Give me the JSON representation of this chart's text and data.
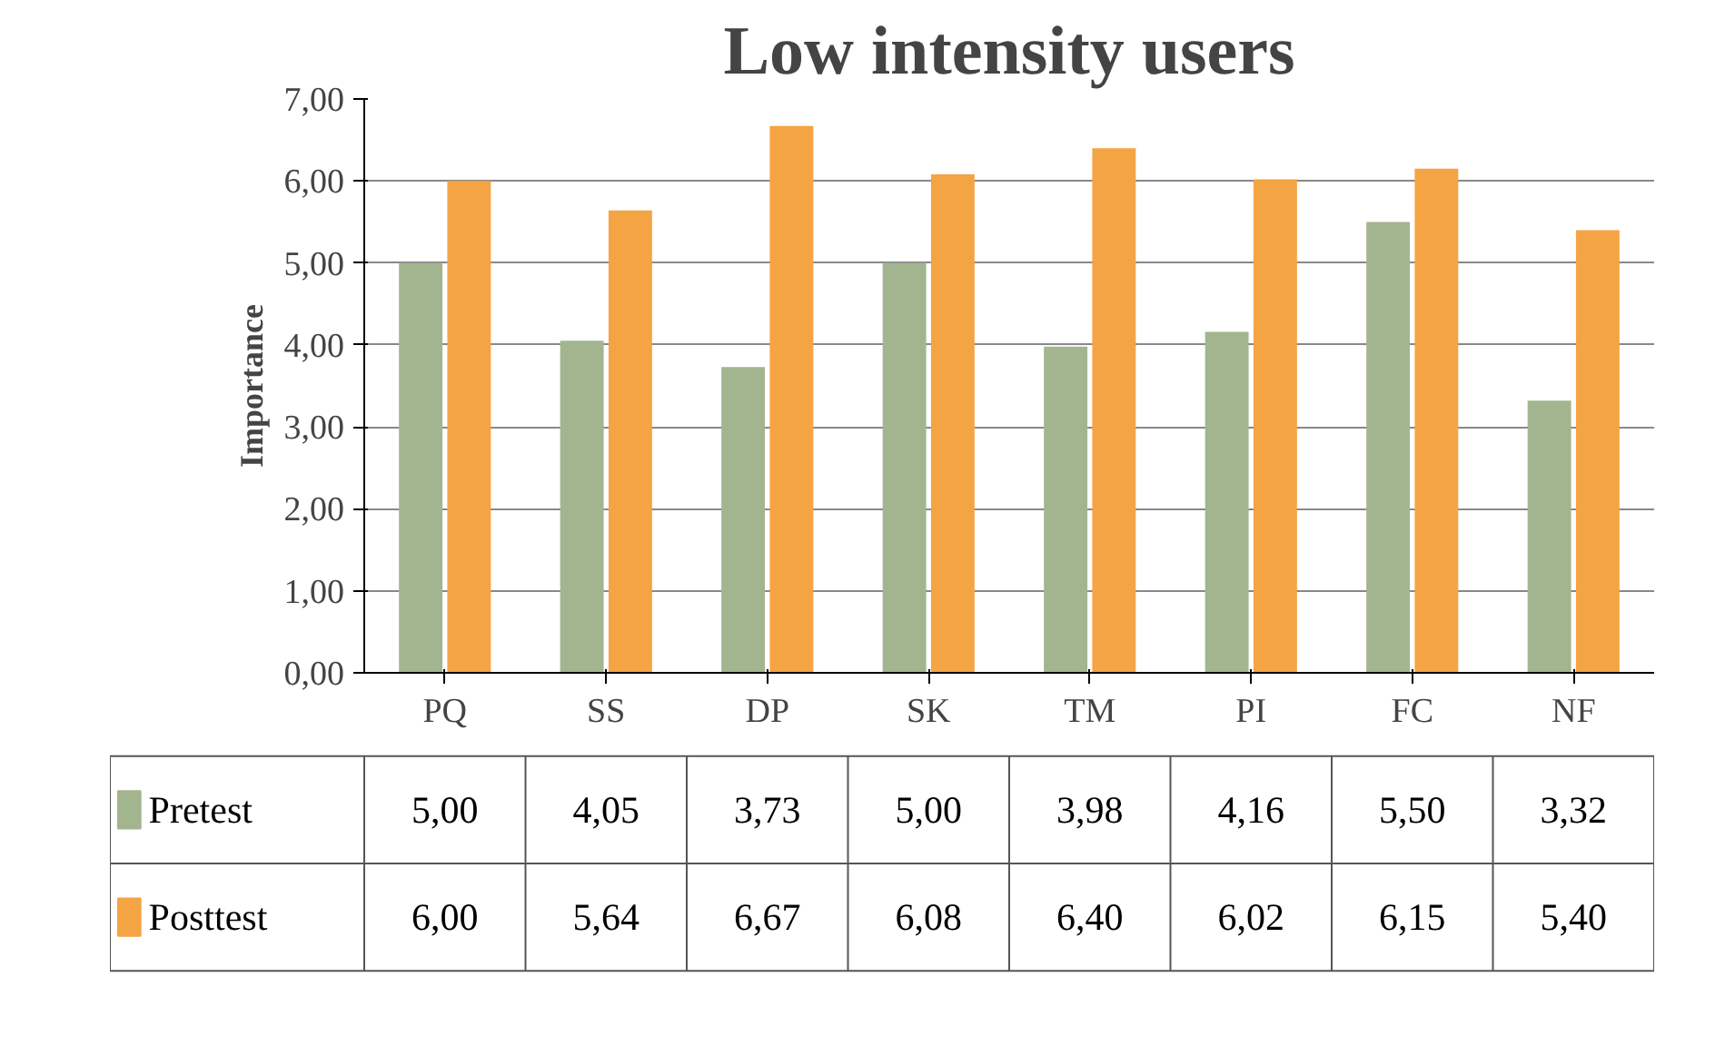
{
  "chart_data": {
    "type": "bar",
    "title": "Low intensity users",
    "ylabel": "Importance",
    "categories": [
      "PQ",
      "SS",
      "DP",
      "SK",
      "TM",
      "PI",
      "FC",
      "NF"
    ],
    "series": [
      {
        "name": "Pretest",
        "color": "#a3b58f",
        "values": [
          5.0,
          4.05,
          3.73,
          5.0,
          3.98,
          4.16,
          5.5,
          3.32
        ],
        "value_labels": [
          "5,00",
          "4,05",
          "3,73",
          "5,00",
          "3,98",
          "4,16",
          "5,50",
          "3,32"
        ]
      },
      {
        "name": "Posttest",
        "color": "#f5a444",
        "values": [
          6.0,
          5.64,
          6.67,
          6.08,
          6.4,
          6.02,
          6.15,
          5.4
        ],
        "value_labels": [
          "6,00",
          "5,64",
          "6,67",
          "6,08",
          "6,40",
          "6,02",
          "6,15",
          "5,40"
        ]
      }
    ],
    "ylim": [
      0,
      7
    ],
    "yticks": [
      {
        "value": 0,
        "label": "0,00"
      },
      {
        "value": 1,
        "label": "1,00"
      },
      {
        "value": 2,
        "label": "2,00"
      },
      {
        "value": 3,
        "label": "3,00"
      },
      {
        "value": 4,
        "label": "4,00"
      },
      {
        "value": 5,
        "label": "5,00"
      },
      {
        "value": 6,
        "label": "6,00"
      },
      {
        "value": 7,
        "label": "7,00"
      }
    ],
    "grid": "y",
    "legend": "bottom"
  }
}
